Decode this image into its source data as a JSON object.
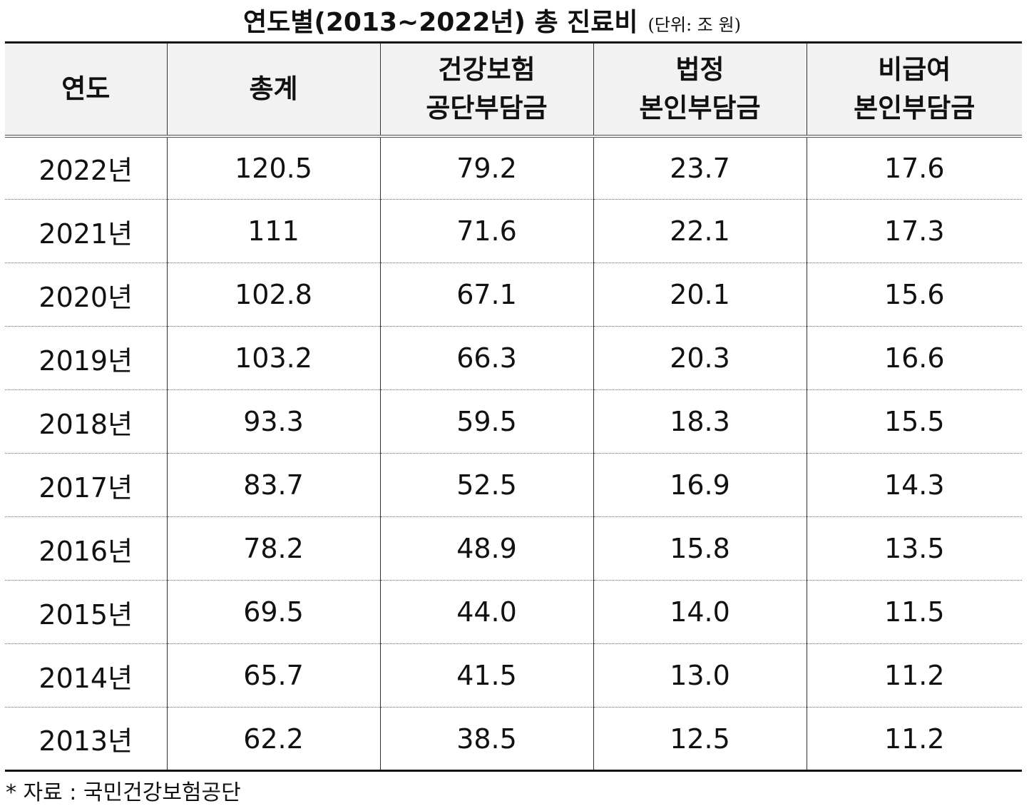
{
  "title": "연도별(2013~2022년) 총 진료비",
  "unit": "(단위: 조 원)",
  "table": {
    "header": [
      [
        "연도"
      ],
      [
        "총계"
      ],
      [
        "건강보험",
        "공단부담금"
      ],
      [
        "법정",
        "본인부담금"
      ],
      [
        "비급여",
        "본인부담금"
      ]
    ],
    "rows": [
      [
        "2022년",
        "120.5",
        "79.2",
        "23.7",
        "17.6"
      ],
      [
        "2021년",
        "111",
        "71.6",
        "22.1",
        "17.3"
      ],
      [
        "2020년",
        "102.8",
        "67.1",
        "20.1",
        "15.6"
      ],
      [
        "2019년",
        "103.2",
        "66.3",
        "20.3",
        "16.6"
      ],
      [
        "2018년",
        "93.3",
        "59.5",
        "18.3",
        "15.5"
      ],
      [
        "2017년",
        "83.7",
        "52.5",
        "16.9",
        "14.3"
      ],
      [
        "2016년",
        "78.2",
        "48.9",
        "15.8",
        "13.5"
      ],
      [
        "2015년",
        "69.5",
        "44.0",
        "14.0",
        "11.5"
      ],
      [
        "2014년",
        "65.7",
        "41.5",
        "13.0",
        "11.2"
      ],
      [
        "2013년",
        "62.2",
        "38.5",
        "12.5",
        "11.2"
      ]
    ]
  },
  "source": "* 자료 : 국민건강보험공단"
}
